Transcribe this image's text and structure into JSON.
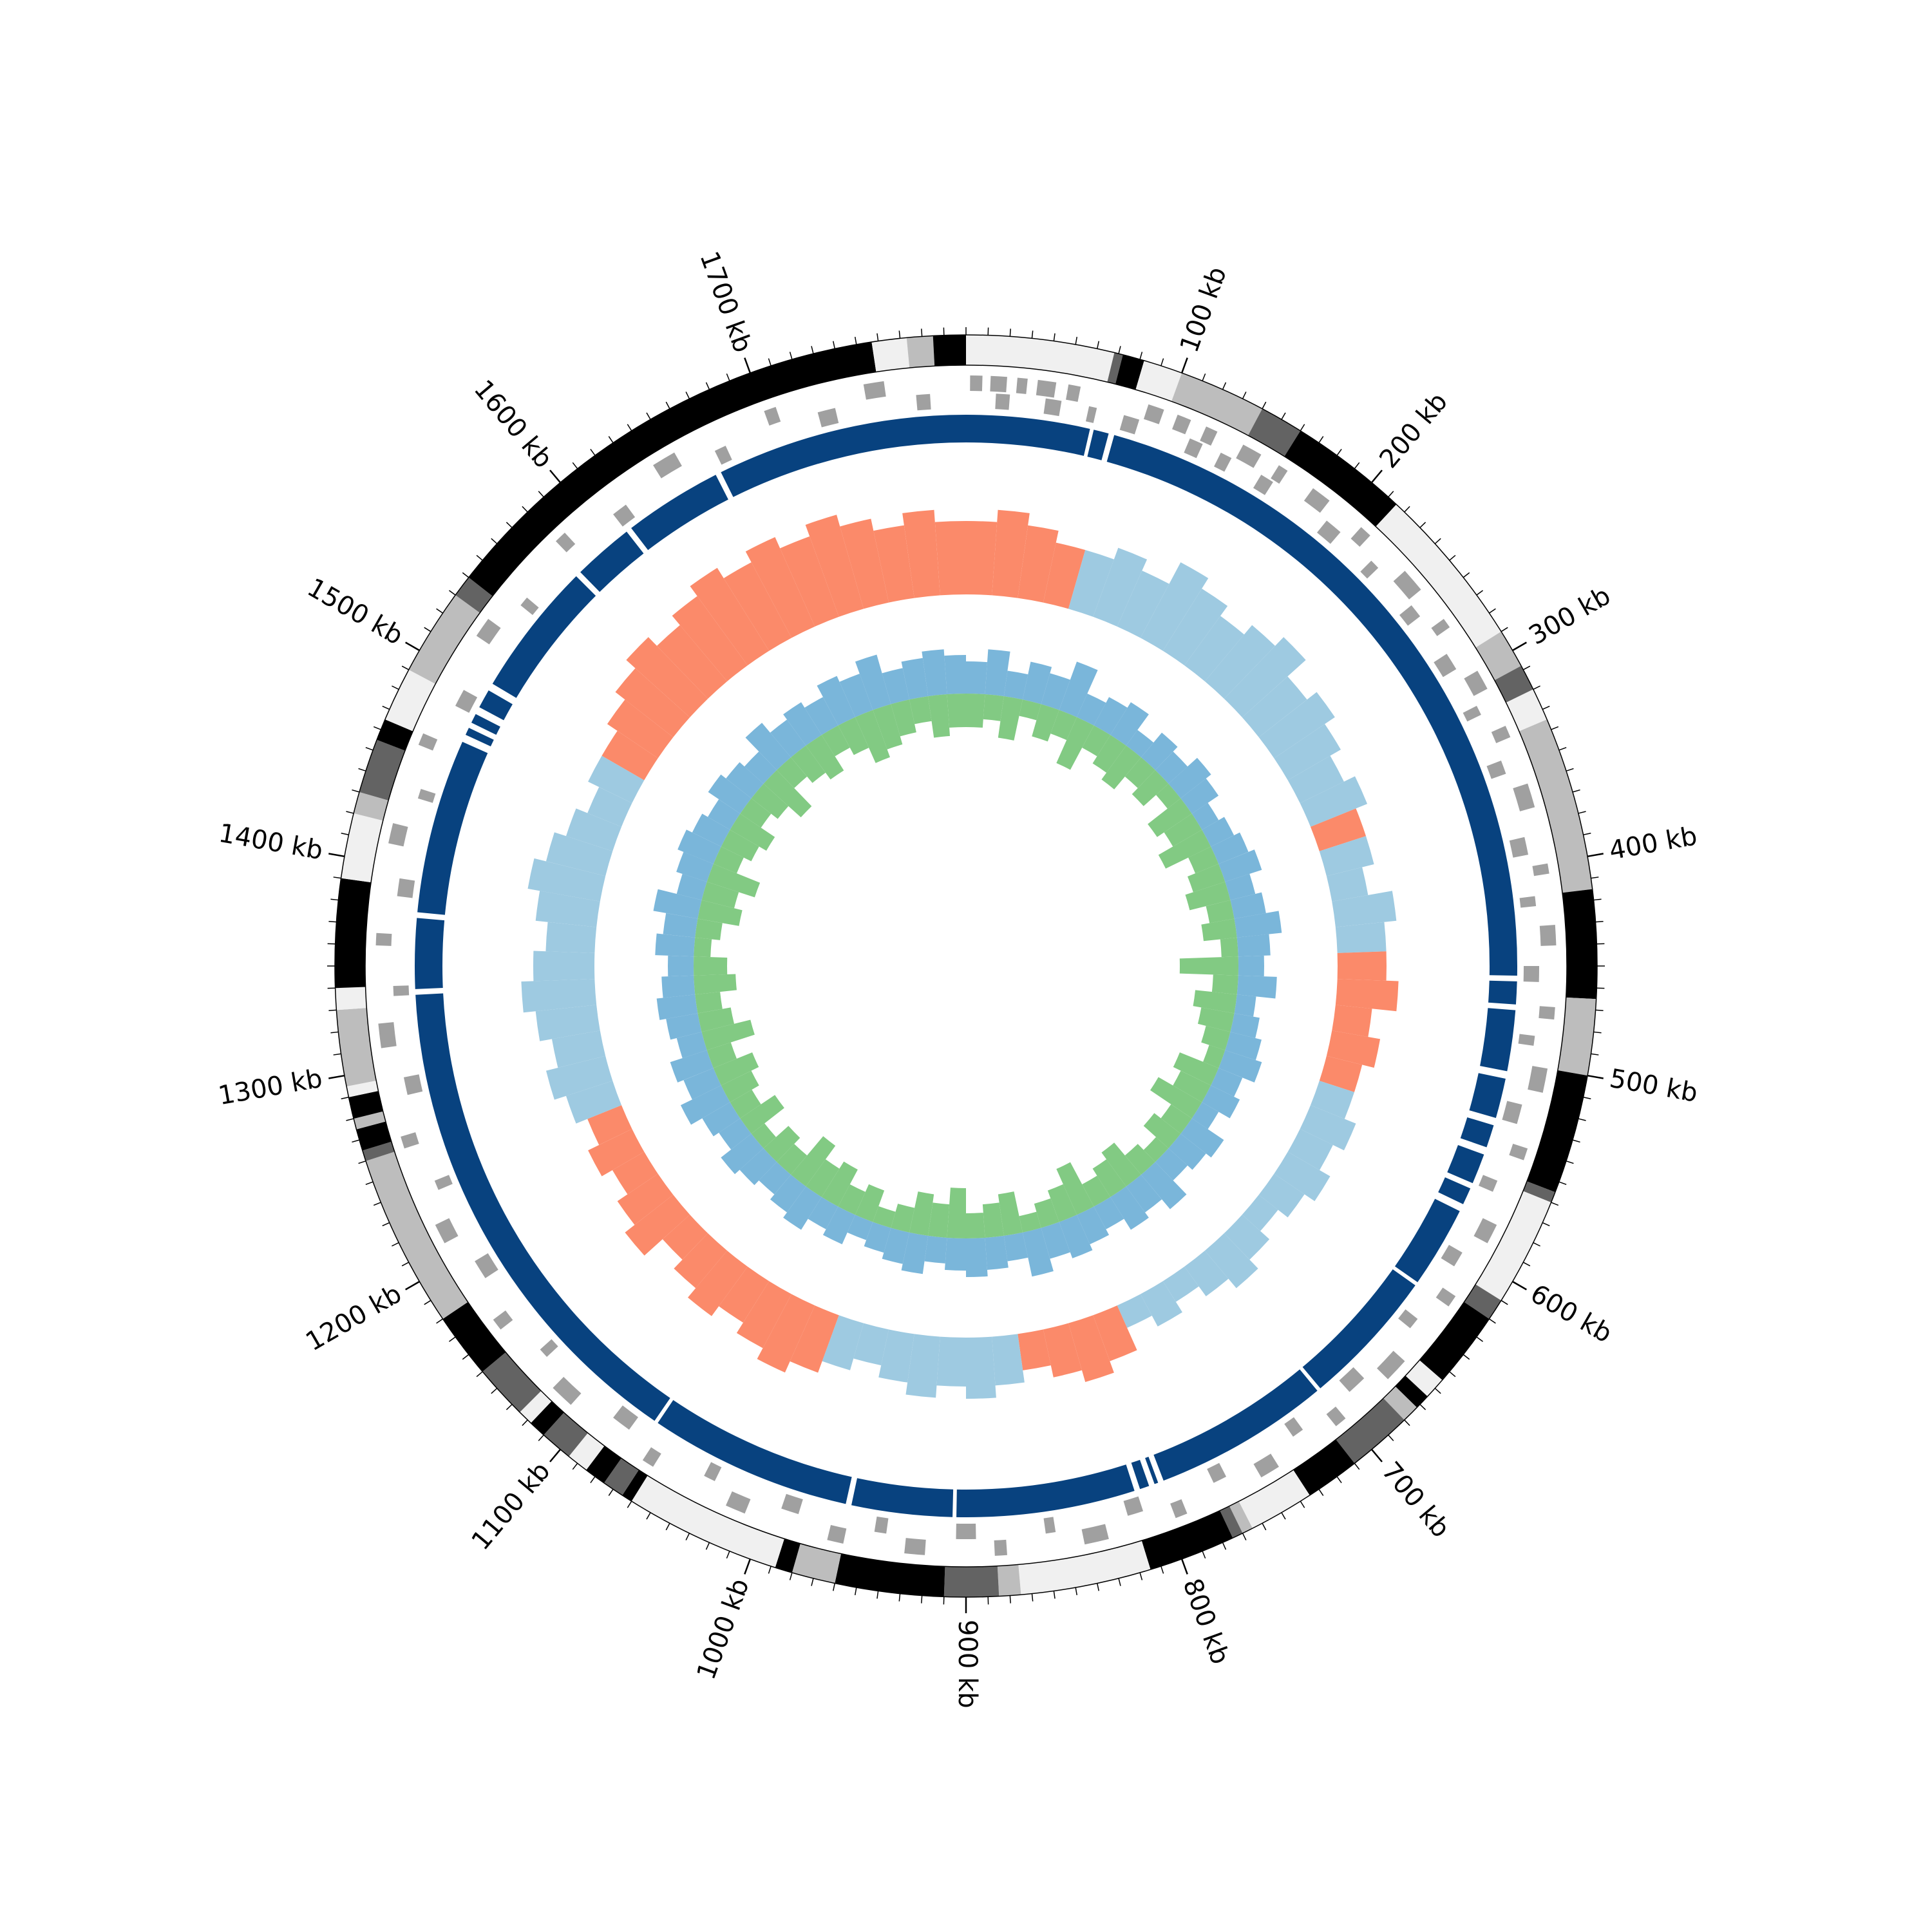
{
  "chart_data": {
    "type": "circos",
    "xlim": [
      0,
      1800
    ],
    "xticks": [
      {
        "value": 100,
        "label": "100 kb"
      },
      {
        "value": 200,
        "label": "200 kb"
      },
      {
        "value": 300,
        "label": "300 kb"
      },
      {
        "value": 400,
        "label": "400 kb"
      },
      {
        "value": 500,
        "label": "500 kb"
      },
      {
        "value": 600,
        "label": "600 kb"
      },
      {
        "value": 700,
        "label": "700 kb"
      },
      {
        "value": 800,
        "label": "800 kb"
      },
      {
        "value": 900,
        "label": "900 kb"
      },
      {
        "value": 1000,
        "label": "1000 kb"
      },
      {
        "value": 1100,
        "label": "1100 kb"
      },
      {
        "value": 1200,
        "label": "1200 kb"
      },
      {
        "value": 1300,
        "label": "1300 kb"
      },
      {
        "value": 1400,
        "label": "1400 kb"
      },
      {
        "value": 1500,
        "label": "1500 kb"
      },
      {
        "value": 1600,
        "label": "1600 kb"
      },
      {
        "value": 1700,
        "label": "1700 kb"
      }
    ],
    "minor_tick_step": 10,
    "bands": [
      {
        "start": 0,
        "end": 68,
        "color": "#f0f0f0"
      },
      {
        "start": 68,
        "end": 72,
        "color": "#636363"
      },
      {
        "start": 72,
        "end": 82,
        "color": "#000000"
      },
      {
        "start": 82,
        "end": 100,
        "color": "#f0f0f0"
      },
      {
        "start": 100,
        "end": 140,
        "color": "#bdbdbd"
      },
      {
        "start": 140,
        "end": 160,
        "color": "#636363"
      },
      {
        "start": 160,
        "end": 215,
        "color": "#000000"
      },
      {
        "start": 215,
        "end": 290,
        "color": "#f0f0f0"
      },
      {
        "start": 290,
        "end": 308,
        "color": "#bdbdbd"
      },
      {
        "start": 308,
        "end": 320,
        "color": "#636363"
      },
      {
        "start": 320,
        "end": 335,
        "color": "#f0f0f0"
      },
      {
        "start": 335,
        "end": 415,
        "color": "#bdbdbd"
      },
      {
        "start": 415,
        "end": 465,
        "color": "#000000"
      },
      {
        "start": 465,
        "end": 500,
        "color": "#bdbdbd"
      },
      {
        "start": 500,
        "end": 555,
        "color": "#000000"
      },
      {
        "start": 555,
        "end": 560,
        "color": "#636363"
      },
      {
        "start": 560,
        "end": 610,
        "color": "#f0f0f0"
      },
      {
        "start": 610,
        "end": 620,
        "color": "#636363"
      },
      {
        "start": 620,
        "end": 655,
        "color": "#000000"
      },
      {
        "start": 655,
        "end": 665,
        "color": "#f0f0f0"
      },
      {
        "start": 665,
        "end": 672,
        "color": "#000000"
      },
      {
        "start": 672,
        "end": 680,
        "color": "#bdbdbd"
      },
      {
        "start": 680,
        "end": 710,
        "color": "#636363"
      },
      {
        "start": 710,
        "end": 735,
        "color": "#000000"
      },
      {
        "start": 735,
        "end": 765,
        "color": "#f0f0f0"
      },
      {
        "start": 765,
        "end": 770,
        "color": "#bdbdbd"
      },
      {
        "start": 770,
        "end": 775,
        "color": "#636363"
      },
      {
        "start": 775,
        "end": 815,
        "color": "#000000"
      },
      {
        "start": 815,
        "end": 875,
        "color": "#f0f0f0"
      },
      {
        "start": 875,
        "end": 885,
        "color": "#bdbdbd"
      },
      {
        "start": 885,
        "end": 910,
        "color": "#636363"
      },
      {
        "start": 910,
        "end": 960,
        "color": "#000000"
      },
      {
        "start": 960,
        "end": 980,
        "color": "#bdbdbd"
      },
      {
        "start": 980,
        "end": 988,
        "color": "#000000"
      },
      {
        "start": 988,
        "end": 1060,
        "color": "#f0f0f0"
      },
      {
        "start": 1060,
        "end": 1065,
        "color": "#000000"
      },
      {
        "start": 1065,
        "end": 1075,
        "color": "#636363"
      },
      {
        "start": 1075,
        "end": 1085,
        "color": "#000000"
      },
      {
        "start": 1085,
        "end": 1095,
        "color": "#f0f0f0"
      },
      {
        "start": 1095,
        "end": 1110,
        "color": "#636363"
      },
      {
        "start": 1110,
        "end": 1118,
        "color": "#000000"
      },
      {
        "start": 1118,
        "end": 1125,
        "color": "#f0f0f0"
      },
      {
        "start": 1125,
        "end": 1150,
        "color": "#636363"
      },
      {
        "start": 1150,
        "end": 1180,
        "color": "#000000"
      },
      {
        "start": 1180,
        "end": 1260,
        "color": "#bdbdbd"
      },
      {
        "start": 1260,
        "end": 1265,
        "color": "#636363"
      },
      {
        "start": 1265,
        "end": 1275,
        "color": "#000000"
      },
      {
        "start": 1275,
        "end": 1280,
        "color": "#bdbdbd"
      },
      {
        "start": 1280,
        "end": 1290,
        "color": "#000000"
      },
      {
        "start": 1290,
        "end": 1295,
        "color": "#f0f0f0"
      },
      {
        "start": 1295,
        "end": 1330,
        "color": "#bdbdbd"
      },
      {
        "start": 1330,
        "end": 1340,
        "color": "#f0f0f0"
      },
      {
        "start": 1340,
        "end": 1390,
        "color": "#000000"
      },
      {
        "start": 1390,
        "end": 1420,
        "color": "#f0f0f0"
      },
      {
        "start": 1420,
        "end": 1430,
        "color": "#bdbdbd"
      },
      {
        "start": 1430,
        "end": 1455,
        "color": "#636363"
      },
      {
        "start": 1455,
        "end": 1465,
        "color": "#000000"
      },
      {
        "start": 1465,
        "end": 1490,
        "color": "#f0f0f0"
      },
      {
        "start": 1490,
        "end": 1530,
        "color": "#bdbdbd"
      },
      {
        "start": 1530,
        "end": 1540,
        "color": "#636363"
      },
      {
        "start": 1540,
        "end": 1757,
        "color": "#000000"
      },
      {
        "start": 1757,
        "end": 1773,
        "color": "#f0f0f0"
      },
      {
        "start": 1773,
        "end": 1785,
        "color": "#bdbdbd"
      },
      {
        "start": 1785,
        "end": 1800,
        "color": "#000000"
      }
    ],
    "genes": {
      "color": "#a0a0a0",
      "plus": [
        [
          2,
          8
        ],
        [
          12,
          20
        ],
        [
          25,
          30
        ],
        [
          35,
          44
        ],
        [
          50,
          56
        ],
        [
          90,
          98
        ],
        [
          105,
          112
        ],
        [
          120,
          126
        ],
        [
          140,
          150
        ],
        [
          160,
          165
        ],
        [
          180,
          190
        ],
        [
          210,
          216
        ],
        [
          240,
          252
        ],
        [
          270,
          275
        ],
        [
          300,
          310
        ],
        [
          330,
          336
        ],
        [
          360,
          372
        ],
        [
          400,
          405
        ],
        [
          430,
          440
        ],
        [
          470,
          476
        ],
        [
          500,
          512
        ],
        [
          540,
          546
        ],
        [
          580,
          590
        ],
        [
          620,
          626
        ],
        [
          660,
          672
        ],
        [
          700,
          706
        ],
        [
          740,
          750
        ],
        [
          790,
          796
        ],
        [
          830,
          842
        ],
        [
          880,
          886
        ],
        [
          920,
          930
        ],
        [
          960,
          968
        ],
        [
          1010,
          1020
        ],
        [
          1060,
          1066
        ],
        [
          1110,
          1122
        ],
        [
          1160,
          1166
        ],
        [
          1210,
          1220
        ],
        [
          1260,
          1266
        ],
        [
          1310,
          1322
        ],
        [
          1360,
          1366
        ],
        [
          1410,
          1420
        ],
        [
          1460,
          1466
        ],
        [
          1520,
          1530
        ],
        [
          1580,
          1586
        ],
        [
          1640,
          1652
        ],
        [
          1700,
          1706
        ],
        [
          1750,
          1760
        ]
      ],
      "minus": [
        [
          15,
          22
        ],
        [
          40,
          48
        ],
        [
          62,
          66
        ],
        [
          80,
          88
        ],
        [
          115,
          122
        ],
        [
          132,
          138
        ],
        [
          155,
          162
        ],
        [
          195,
          204
        ],
        [
          225,
          230
        ],
        [
          255,
          262
        ],
        [
          285,
          294
        ],
        [
          315,
          320
        ],
        [
          345,
          352
        ],
        [
          385,
          394
        ],
        [
          415,
          420
        ],
        [
          450,
          458
        ],
        [
          485,
          490
        ],
        [
          520,
          530
        ],
        [
          560,
          566
        ],
        [
          600,
          608
        ],
        [
          640,
          646
        ],
        [
          680,
          690
        ],
        [
          720,
          726
        ],
        [
          765,
          772
        ],
        [
          810,
          818
        ],
        [
          855,
          860
        ],
        [
          895,
          905
        ],
        [
          940,
          946
        ],
        [
          985,
          994
        ],
        [
          1030,
          1036
        ],
        [
          1080,
          1090
        ],
        [
          1135,
          1140
        ],
        [
          1185,
          1195
        ],
        [
          1235,
          1240
        ],
        [
          1285,
          1294
        ],
        [
          1335,
          1340
        ],
        [
          1385,
          1394
        ],
        [
          1435,
          1440
        ],
        [
          1485,
          1494
        ],
        [
          1545,
          1550
        ],
        [
          1610,
          1618
        ],
        [
          1670,
          1676
        ],
        [
          1725,
          1734
        ],
        [
          1775,
          1782
        ]
      ]
    },
    "contigs": {
      "color": "#08427f",
      "spans": [
        [
          0,
          65
        ],
        [
          67,
          75
        ],
        [
          78,
          455
        ],
        [
          458,
          470
        ],
        [
          473,
          505
        ],
        [
          509,
          530
        ],
        [
          534,
          546
        ],
        [
          550,
          566
        ],
        [
          569,
          578
        ],
        [
          582,
          625
        ],
        [
          627,
          700
        ],
        [
          702,
          795
        ],
        [
          798,
          800
        ],
        [
          803,
          808
        ],
        [
          811,
          905
        ],
        [
          907,
          960
        ],
        [
          963,
          1070
        ],
        [
          1072,
          1335
        ],
        [
          1338,
          1375
        ],
        [
          1378,
          1470
        ],
        [
          1474,
          1478
        ],
        [
          1481,
          1486
        ],
        [
          1490,
          1500
        ],
        [
          1504,
          1575
        ],
        [
          1578,
          1610
        ],
        [
          1613,
          1665
        ],
        [
          1668,
          1800
        ]
      ]
    },
    "x": [
      10,
      30,
      50,
      70,
      90,
      110,
      130,
      150,
      170,
      190,
      210,
      230,
      250,
      270,
      290,
      310,
      330,
      350,
      370,
      390,
      410,
      430,
      450,
      470,
      490,
      510,
      530,
      550,
      570,
      590,
      610,
      630,
      650,
      670,
      690,
      710,
      730,
      750,
      770,
      790,
      810,
      830,
      850,
      870,
      890,
      910,
      930,
      950,
      970,
      990,
      1010,
      1030,
      1050,
      1070,
      1090,
      1110,
      1130,
      1150,
      1170,
      1190,
      1210,
      1230,
      1250,
      1270,
      1290,
      1310,
      1330,
      1350,
      1370,
      1390,
      1410,
      1430,
      1450,
      1470,
      1490,
      1510,
      1530,
      1550,
      1570,
      1590,
      1610,
      1630,
      1650,
      1670,
      1690,
      1710,
      1730,
      1750,
      1770,
      1790
    ],
    "gc_skew": {
      "ylim": [
        -0.1,
        0.1
      ],
      "color_positive": "#fb8a6a",
      "color_negative": "#9ecae1",
      "values": [
        0.06,
        0.07,
        0.06,
        0.05,
        -0.05,
        -0.06,
        -0.05,
        -0.07,
        -0.06,
        -0.05,
        -0.06,
        -0.07,
        -0.05,
        -0.06,
        -0.05,
        -0.04,
        -0.05,
        0.04,
        -0.04,
        -0.03,
        -0.05,
        -0.04,
        0.04,
        0.05,
        0.03,
        0.04,
        0.03,
        -0.03,
        -0.04,
        -0.03,
        -0.04,
        -0.03,
        -0.02,
        -0.03,
        -0.04,
        -0.03,
        -0.02,
        -0.03,
        -0.02,
        0.04,
        0.05,
        0.04,
        0.03,
        -0.04,
        -0.05,
        -0.04,
        -0.05,
        -0.04,
        -0.03,
        -0.04,
        0.05,
        0.06,
        0.05,
        0.04,
        0.05,
        0.04,
        0.03,
        0.05,
        0.04,
        0.03,
        0.04,
        0.03,
        -0.04,
        -0.05,
        -0.04,
        -0.05,
        -0.06,
        -0.05,
        -0.04,
        -0.05,
        -0.06,
        -0.05,
        -0.04,
        -0.03,
        -0.04,
        0.04,
        0.05,
        0.06,
        0.07,
        0.06,
        0.07,
        0.08,
        0.07,
        0.08,
        0.07,
        0.08,
        0.07,
        0.06,
        0.07,
        0.06
      ]
    },
    "gc_content": {
      "ylim": [
        0,
        0.1
      ],
      "series": [
        {
          "color": "#6baed6",
          "values": [
            0.05,
            0.07,
            0.04,
            0.06,
            0.05,
            0.08,
            0.04,
            0.05,
            0.06,
            0.03,
            0.05,
            0.04,
            0.06,
            0.05,
            0.03,
            0.04,
            0.05,
            0.06,
            0.04,
            0.05,
            0.07,
            0.05,
            0.04,
            0.06,
            0.03,
            0.04,
            0.05,
            0.06,
            0.04,
            0.05,
            0.03,
            0.06,
            0.05,
            0.04,
            0.07,
            0.05,
            0.06,
            0.04,
            0.05,
            0.06,
            0.05,
            0.07,
            0.04,
            0.05,
            0.06,
            0.05,
            0.04,
            0.06,
            0.05,
            0.04,
            0.03,
            0.05,
            0.04,
            0.06,
            0.05,
            0.04,
            0.05,
            0.06,
            0.04,
            0.05,
            0.07,
            0.05,
            0.06,
            0.04,
            0.05,
            0.06,
            0.05,
            0.04,
            0.06,
            0.05,
            0.07,
            0.04,
            0.05,
            0.06,
            0.05,
            0.04,
            0.06,
            0.05,
            0.04,
            0.07,
            0.05,
            0.06,
            0.05,
            0.07,
            0.06,
            0.08,
            0.05,
            0.06,
            0.07,
            0.06
          ]
        },
        {
          "color": "#74c476",
          "values": [
            0.04,
            0.03,
            0.05,
            0.02,
            0.04,
            0.03,
            0.06,
            0.03,
            0.04,
            0.05,
            0.03,
            0.04,
            0.02,
            0.05,
            0.04,
            0.06,
            0.03,
            0.04,
            0.05,
            0.03,
            0.04,
            0.02,
            0.07,
            0.03,
            0.05,
            0.04,
            0.03,
            0.02,
            0.05,
            0.04,
            0.06,
            0.03,
            0.04,
            0.02,
            0.03,
            0.05,
            0.04,
            0.03,
            0.06,
            0.04,
            0.03,
            0.02,
            0.05,
            0.04,
            0.03,
            0.06,
            0.04,
            0.05,
            0.03,
            0.02,
            0.04,
            0.03,
            0.05,
            0.04,
            0.06,
            0.03,
            0.04,
            0.02,
            0.05,
            0.03,
            0.04,
            0.05,
            0.03,
            0.06,
            0.04,
            0.03,
            0.05,
            0.04,
            0.02,
            0.03,
            0.05,
            0.04,
            0.06,
            0.03,
            0.04,
            0.05,
            0.03,
            0.04,
            0.06,
            0.03,
            0.04,
            0.05,
            0.03,
            0.04,
            0.06,
            0.05,
            0.04,
            0.03,
            0.05,
            0.04
          ]
        }
      ]
    }
  }
}
